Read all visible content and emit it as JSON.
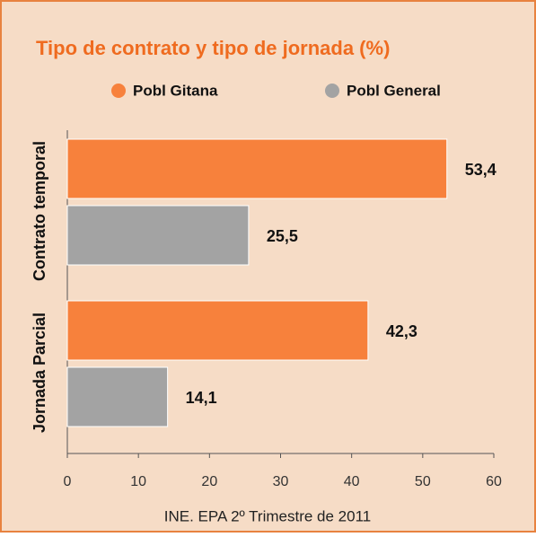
{
  "chart_data": {
    "type": "hbar",
    "title": "Tipo de contrato y tipo de jornada (%)",
    "categories": [
      "Contrato temporal",
      "Jornada Parcial"
    ],
    "series": [
      {
        "name": "Pobl Gitana",
        "color": "#f7813c",
        "values": [
          53.4,
          42.3
        ],
        "value_labels": [
          "53,4",
          "42,3"
        ]
      },
      {
        "name": "Pobl General",
        "color": "#a3a3a3",
        "values": [
          25.5,
          14.1
        ],
        "value_labels": [
          "25,5",
          "14,1"
        ]
      }
    ],
    "xlim": [
      0,
      60
    ],
    "xticks": [
      0,
      10,
      20,
      30,
      40,
      50,
      60
    ],
    "source": "INE. EPA 2º Trimestre de 2011"
  }
}
